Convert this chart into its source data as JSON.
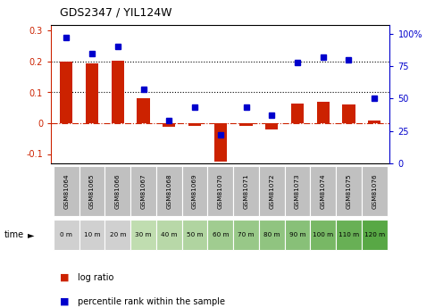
{
  "title": "GDS2347 / YIL124W",
  "samples": [
    "GSM81064",
    "GSM81065",
    "GSM81066",
    "GSM81067",
    "GSM81068",
    "GSM81069",
    "GSM81070",
    "GSM81071",
    "GSM81072",
    "GSM81073",
    "GSM81074",
    "GSM81075",
    "GSM81076"
  ],
  "times": [
    "0 m",
    "10 m",
    "20 m",
    "30 m",
    "40 m",
    "50 m",
    "60 m",
    "70 m",
    "80 m",
    "90 m",
    "100 m",
    "110 m",
    "120 m"
  ],
  "log_ratio": [
    0.2,
    0.193,
    0.202,
    0.082,
    -0.012,
    -0.01,
    -0.125,
    -0.01,
    -0.02,
    0.065,
    0.07,
    0.06,
    0.01
  ],
  "percentile": [
    97,
    85,
    90,
    57,
    33,
    43,
    22,
    43,
    37,
    78,
    82,
    80,
    50
  ],
  "bar_color": "#cc2200",
  "dot_color": "#0000cc",
  "ylim_left": [
    -0.13,
    0.32
  ],
  "ylim_right": [
    0,
    107
  ],
  "yticks_left": [
    -0.1,
    0.0,
    0.1,
    0.2,
    0.3
  ],
  "yticks_right": [
    0,
    25,
    50,
    75,
    100
  ],
  "ytick_labels_right": [
    "0",
    "25",
    "50",
    "75",
    "100%"
  ],
  "hlines": [
    0.1,
    0.2
  ],
  "zero_line_color": "#cc2200",
  "hline_color": "black",
  "bar_width": 0.5,
  "sample_row_color": "#c0c0c0",
  "time_colors": [
    "#d0d0d0",
    "#d0d0d0",
    "#d0d0d0",
    "#c0ddb0",
    "#b8d8a8",
    "#b0d4a0",
    "#a0cc90",
    "#98c888",
    "#90c480",
    "#88c078",
    "#78b865",
    "#68b055",
    "#58a845"
  ],
  "legend_log_ratio": "log ratio",
  "legend_percentile": "percentile rank within the sample"
}
